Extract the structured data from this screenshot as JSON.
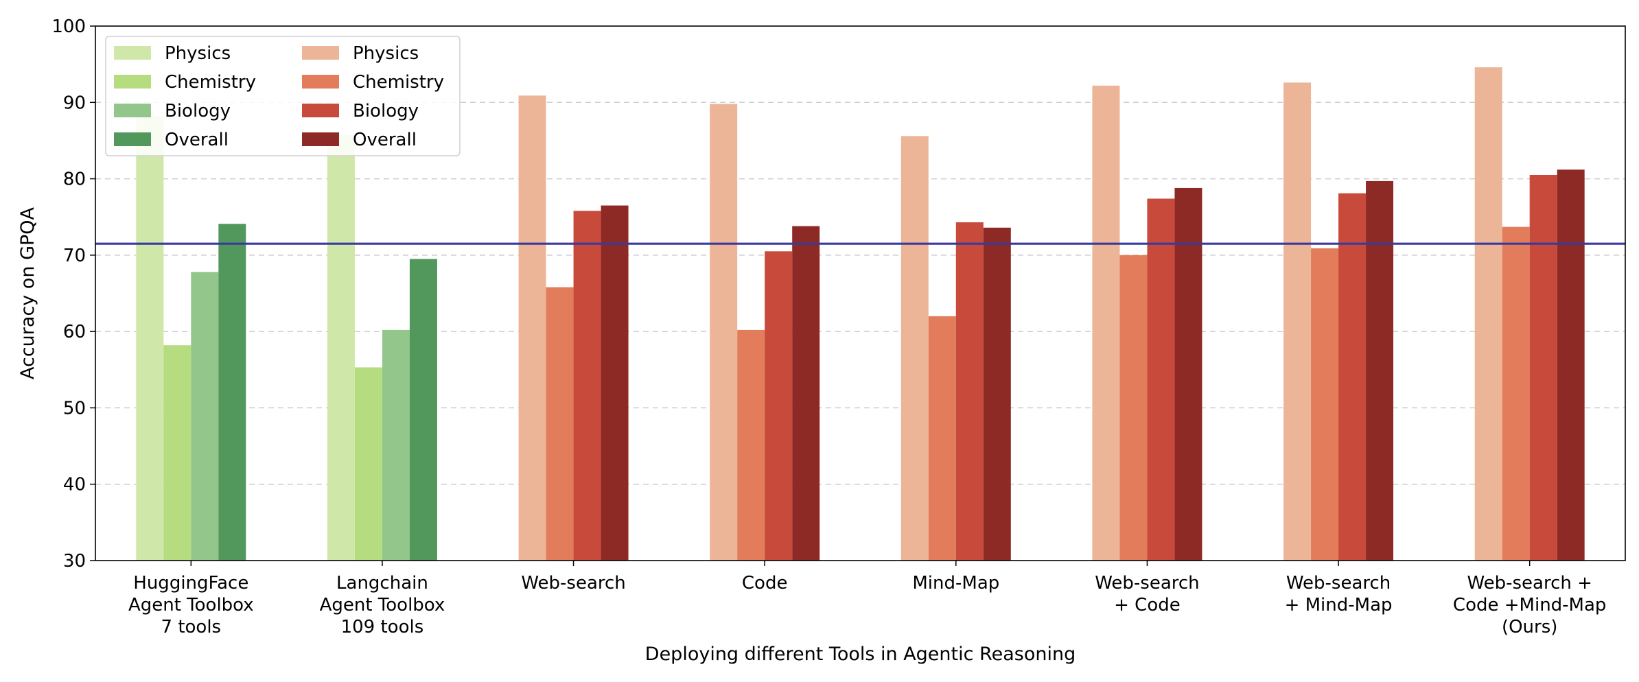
{
  "chart_data": {
    "type": "bar",
    "xlabel": "Deploying different Tools in Agentic Reasoning",
    "ylabel": "Accuracy on GPQA",
    "ylim": [
      30,
      100
    ],
    "yticks": [
      30,
      40,
      50,
      60,
      70,
      80,
      90,
      100
    ],
    "grid": "y-dashed",
    "legend_placement": "top-left",
    "reference_line": {
      "y": 71.5,
      "color": "#3a3a9c"
    },
    "categories": [
      [
        "HuggingFace",
        "Agent Toolbox",
        "7 tools"
      ],
      [
        "Langchain",
        "Agent Toolbox",
        "109 tools"
      ],
      [
        "Web-search"
      ],
      [
        "Code"
      ],
      [
        "Mind-Map"
      ],
      [
        "Web-search",
        "+ Code"
      ],
      [
        "Web-search",
        "+ Mind-Map"
      ],
      [
        "Web-search +",
        "Code +Mind-Map",
        "(Ours)"
      ]
    ],
    "palette_groups": {
      "green": {
        "categories": [
          0,
          1
        ],
        "colors": [
          "#cfe8a9",
          "#b5dd80",
          "#92c68a",
          "#52975c"
        ]
      },
      "red": {
        "categories": [
          2,
          3,
          4,
          5,
          6,
          7
        ],
        "colors": [
          "#edb597",
          "#e27c5a",
          "#c74a3b",
          "#8e2a26"
        ]
      }
    },
    "series": [
      {
        "name": "Physics",
        "values": [
          88.2,
          85.7,
          90.9,
          89.8,
          85.6,
          92.2,
          92.6,
          94.6
        ]
      },
      {
        "name": "Chemistry",
        "values": [
          58.2,
          55.3,
          65.8,
          60.2,
          62.0,
          70.0,
          70.9,
          73.7
        ]
      },
      {
        "name": "Biology",
        "values": [
          67.8,
          60.2,
          75.8,
          70.5,
          74.3,
          77.4,
          78.1,
          80.5
        ]
      },
      {
        "name": "Overall",
        "values": [
          74.1,
          69.5,
          76.5,
          73.8,
          73.6,
          78.8,
          79.7,
          81.2
        ]
      }
    ],
    "legend": {
      "green": [
        "Physics",
        "Chemistry",
        "Biology",
        "Overall"
      ],
      "red": [
        "Physics",
        "Chemistry",
        "Biology",
        "Overall"
      ]
    }
  }
}
